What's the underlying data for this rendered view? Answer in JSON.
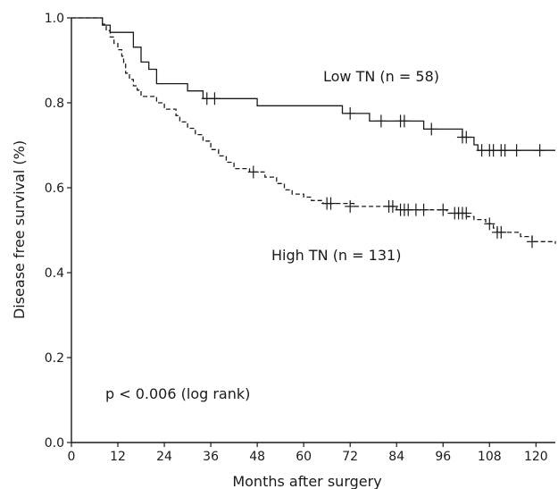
{
  "chart_data": {
    "type": "line",
    "xlabel": "Months after surgery",
    "ylabel": "Disease free survival (%)",
    "xlim": [
      0,
      125
    ],
    "ylim": [
      0,
      1.0
    ],
    "xticks": [
      0,
      12,
      24,
      36,
      48,
      60,
      72,
      84,
      96,
      108,
      120
    ],
    "yticks": [
      0.0,
      0.2,
      0.4,
      0.6,
      0.8,
      1.0
    ],
    "ytick_labels": [
      "0.0",
      "0.2",
      "0.4",
      "0.6",
      "0.8",
      "1.0"
    ],
    "grid": false,
    "annotation": "p < 0.006 (log rank)",
    "series": [
      {
        "name": "Low TN (n = 58)",
        "style": "solid",
        "color": "#1a1a1a",
        "steps": [
          [
            0,
            1.0
          ],
          [
            6,
            1.0
          ],
          [
            8,
            0.983
          ],
          [
            10,
            0.966
          ],
          [
            16,
            0.931
          ],
          [
            18,
            0.896
          ],
          [
            20,
            0.879
          ],
          [
            22,
            0.845
          ],
          [
            30,
            0.828
          ],
          [
            34,
            0.81
          ],
          [
            48,
            0.793
          ],
          [
            70,
            0.775
          ],
          [
            77,
            0.757
          ],
          [
            91,
            0.738
          ],
          [
            101,
            0.719
          ],
          [
            104,
            0.701
          ],
          [
            105,
            0.688
          ],
          [
            125,
            0.688
          ]
        ],
        "censored": [
          [
            35,
            0.81
          ],
          [
            37,
            0.81
          ],
          [
            72,
            0.775
          ],
          [
            80,
            0.757
          ],
          [
            85,
            0.757
          ],
          [
            86,
            0.757
          ],
          [
            93,
            0.738
          ],
          [
            101,
            0.719
          ],
          [
            102,
            0.719
          ],
          [
            106,
            0.688
          ],
          [
            108,
            0.688
          ],
          [
            109,
            0.688
          ],
          [
            111,
            0.688
          ],
          [
            112,
            0.688
          ],
          [
            115,
            0.688
          ],
          [
            121,
            0.688
          ]
        ]
      },
      {
        "name": "High TN (n = 131)",
        "style": "dashed",
        "color": "#1a1a1a",
        "steps": [
          [
            0,
            1.0
          ],
          [
            7,
            1.0
          ],
          [
            8,
            0.985
          ],
          [
            9,
            0.97
          ],
          [
            10,
            0.955
          ],
          [
            11,
            0.94
          ],
          [
            12,
            0.925
          ],
          [
            13,
            0.91
          ],
          [
            13.5,
            0.895
          ],
          [
            14,
            0.87
          ],
          [
            15,
            0.855
          ],
          [
            16,
            0.84
          ],
          [
            17,
            0.83
          ],
          [
            18,
            0.815
          ],
          [
            22,
            0.8
          ],
          [
            24,
            0.785
          ],
          [
            27,
            0.77
          ],
          [
            28,
            0.755
          ],
          [
            30,
            0.74
          ],
          [
            32,
            0.725
          ],
          [
            34,
            0.71
          ],
          [
            36,
            0.69
          ],
          [
            38,
            0.675
          ],
          [
            40,
            0.66
          ],
          [
            42,
            0.645
          ],
          [
            46,
            0.637
          ],
          [
            50,
            0.625
          ],
          [
            53,
            0.61
          ],
          [
            55,
            0.595
          ],
          [
            57,
            0.585
          ],
          [
            60,
            0.578
          ],
          [
            62,
            0.57
          ],
          [
            65,
            0.563
          ],
          [
            73,
            0.556
          ],
          [
            84,
            0.548
          ],
          [
            97,
            0.54
          ],
          [
            102,
            0.532
          ],
          [
            104,
            0.525
          ],
          [
            107,
            0.515
          ],
          [
            109,
            0.505
          ],
          [
            110,
            0.495
          ],
          [
            116,
            0.485
          ],
          [
            119,
            0.473
          ],
          [
            125,
            0.468
          ]
        ],
        "censored": [
          [
            47,
            0.637
          ],
          [
            66,
            0.563
          ],
          [
            67,
            0.563
          ],
          [
            72,
            0.556
          ],
          [
            82,
            0.556
          ],
          [
            83,
            0.556
          ],
          [
            85,
            0.548
          ],
          [
            86,
            0.548
          ],
          [
            87,
            0.548
          ],
          [
            89,
            0.548
          ],
          [
            91,
            0.548
          ],
          [
            96,
            0.548
          ],
          [
            99,
            0.54
          ],
          [
            100,
            0.54
          ],
          [
            101,
            0.54
          ],
          [
            102,
            0.54
          ],
          [
            108,
            0.515
          ],
          [
            110,
            0.495
          ],
          [
            111,
            0.495
          ],
          [
            119,
            0.473
          ]
        ]
      }
    ]
  }
}
